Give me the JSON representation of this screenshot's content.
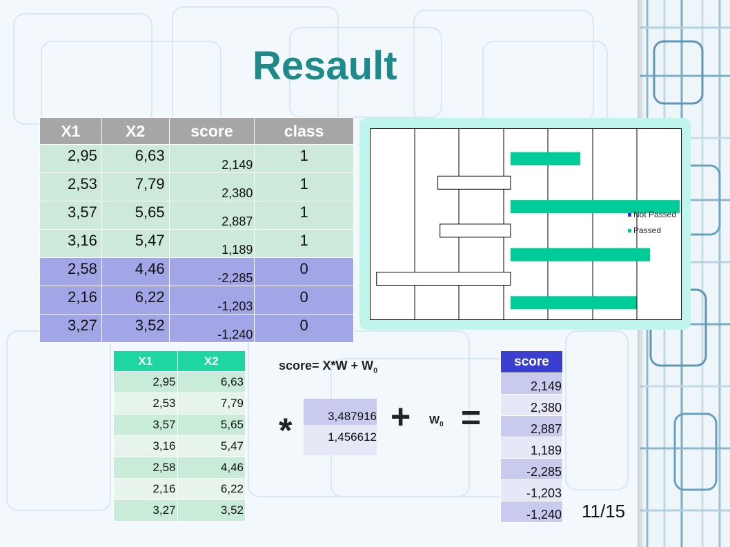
{
  "slide": {
    "title": "Resault",
    "page_number": "11/15"
  },
  "main_table": {
    "headers": [
      "X1",
      "X2",
      "score",
      "class"
    ],
    "rows": [
      {
        "x1": "2,95",
        "x2": "6,63",
        "score": "2,149",
        "class": "1",
        "group": "pass"
      },
      {
        "x1": "2,53",
        "x2": "7,79",
        "score": "2,380",
        "class": "1",
        "group": "pass"
      },
      {
        "x1": "3,57",
        "x2": "5,65",
        "score": "2,887",
        "class": "1",
        "group": "pass"
      },
      {
        "x1": "3,16",
        "x2": "5,47",
        "score": "1,189",
        "class": "1",
        "group": "pass"
      },
      {
        "x1": "2,58",
        "x2": "4,46",
        "score": "-2,285",
        "class": "0",
        "group": "fail"
      },
      {
        "x1": "2,16",
        "x2": "6,22",
        "score": "-1,203",
        "class": "0",
        "group": "fail"
      },
      {
        "x1": "3,27",
        "x2": "3,52",
        "score": "-1,240",
        "class": "0",
        "group": "fail"
      }
    ]
  },
  "x_table": {
    "headers": [
      "X1",
      "X2"
    ],
    "rows": [
      [
        "2,95",
        "6,63"
      ],
      [
        "2,53",
        "7,79"
      ],
      [
        "3,57",
        "5,65"
      ],
      [
        "3,16",
        "5,47"
      ],
      [
        "2,58",
        "4,46"
      ],
      [
        "2,16",
        "6,22"
      ],
      [
        "3,27",
        "3,52"
      ]
    ]
  },
  "formula": {
    "lhs": "score= X*W + W",
    "subscript": "0",
    "star": "*",
    "plus": "+",
    "equals": "=",
    "w0_label": "W",
    "w0_subscript": "0"
  },
  "w_table": {
    "values": [
      "3,487916",
      "1,456612"
    ]
  },
  "score_table": {
    "header": "score",
    "values": [
      "2,149",
      "2,380",
      "2,887",
      "1,189",
      "-2,285",
      "-1,203",
      "-1,240"
    ]
  },
  "colors": {
    "title": "#1f8a8a",
    "passed": "#00cc99",
    "not_passed_legend": "#3333cc",
    "pass_row": "#cde9dc",
    "fail_row": "#a3a6e6",
    "score_header": "#3b3fcf",
    "x_header": "#1ed6a0",
    "chart_frame": "#bff5ea"
  },
  "chart_data": {
    "type": "bar",
    "orientation": "horizontal",
    "legend": [
      "Not Passed",
      "Passed"
    ],
    "legend_position": "right",
    "grid": true,
    "xlim": [
      -2.4,
      2.92
    ],
    "series": [
      {
        "name": "Passed",
        "values": [
          1.189,
          2.887,
          2.38,
          2.149
        ]
      },
      {
        "name": "Not Passed",
        "values": [
          -1.24,
          -1.203,
          -2.285
        ]
      }
    ],
    "bars_top_to_bottom": [
      {
        "value": 1.189,
        "series": "Passed"
      },
      {
        "value": -1.24,
        "series": "Not Passed"
      },
      {
        "value": 2.887,
        "series": "Passed"
      },
      {
        "value": -1.203,
        "series": "Not Passed"
      },
      {
        "value": 2.38,
        "series": "Passed"
      },
      {
        "value": -2.285,
        "series": "Not Passed"
      },
      {
        "value": 2.149,
        "series": "Passed"
      }
    ]
  }
}
